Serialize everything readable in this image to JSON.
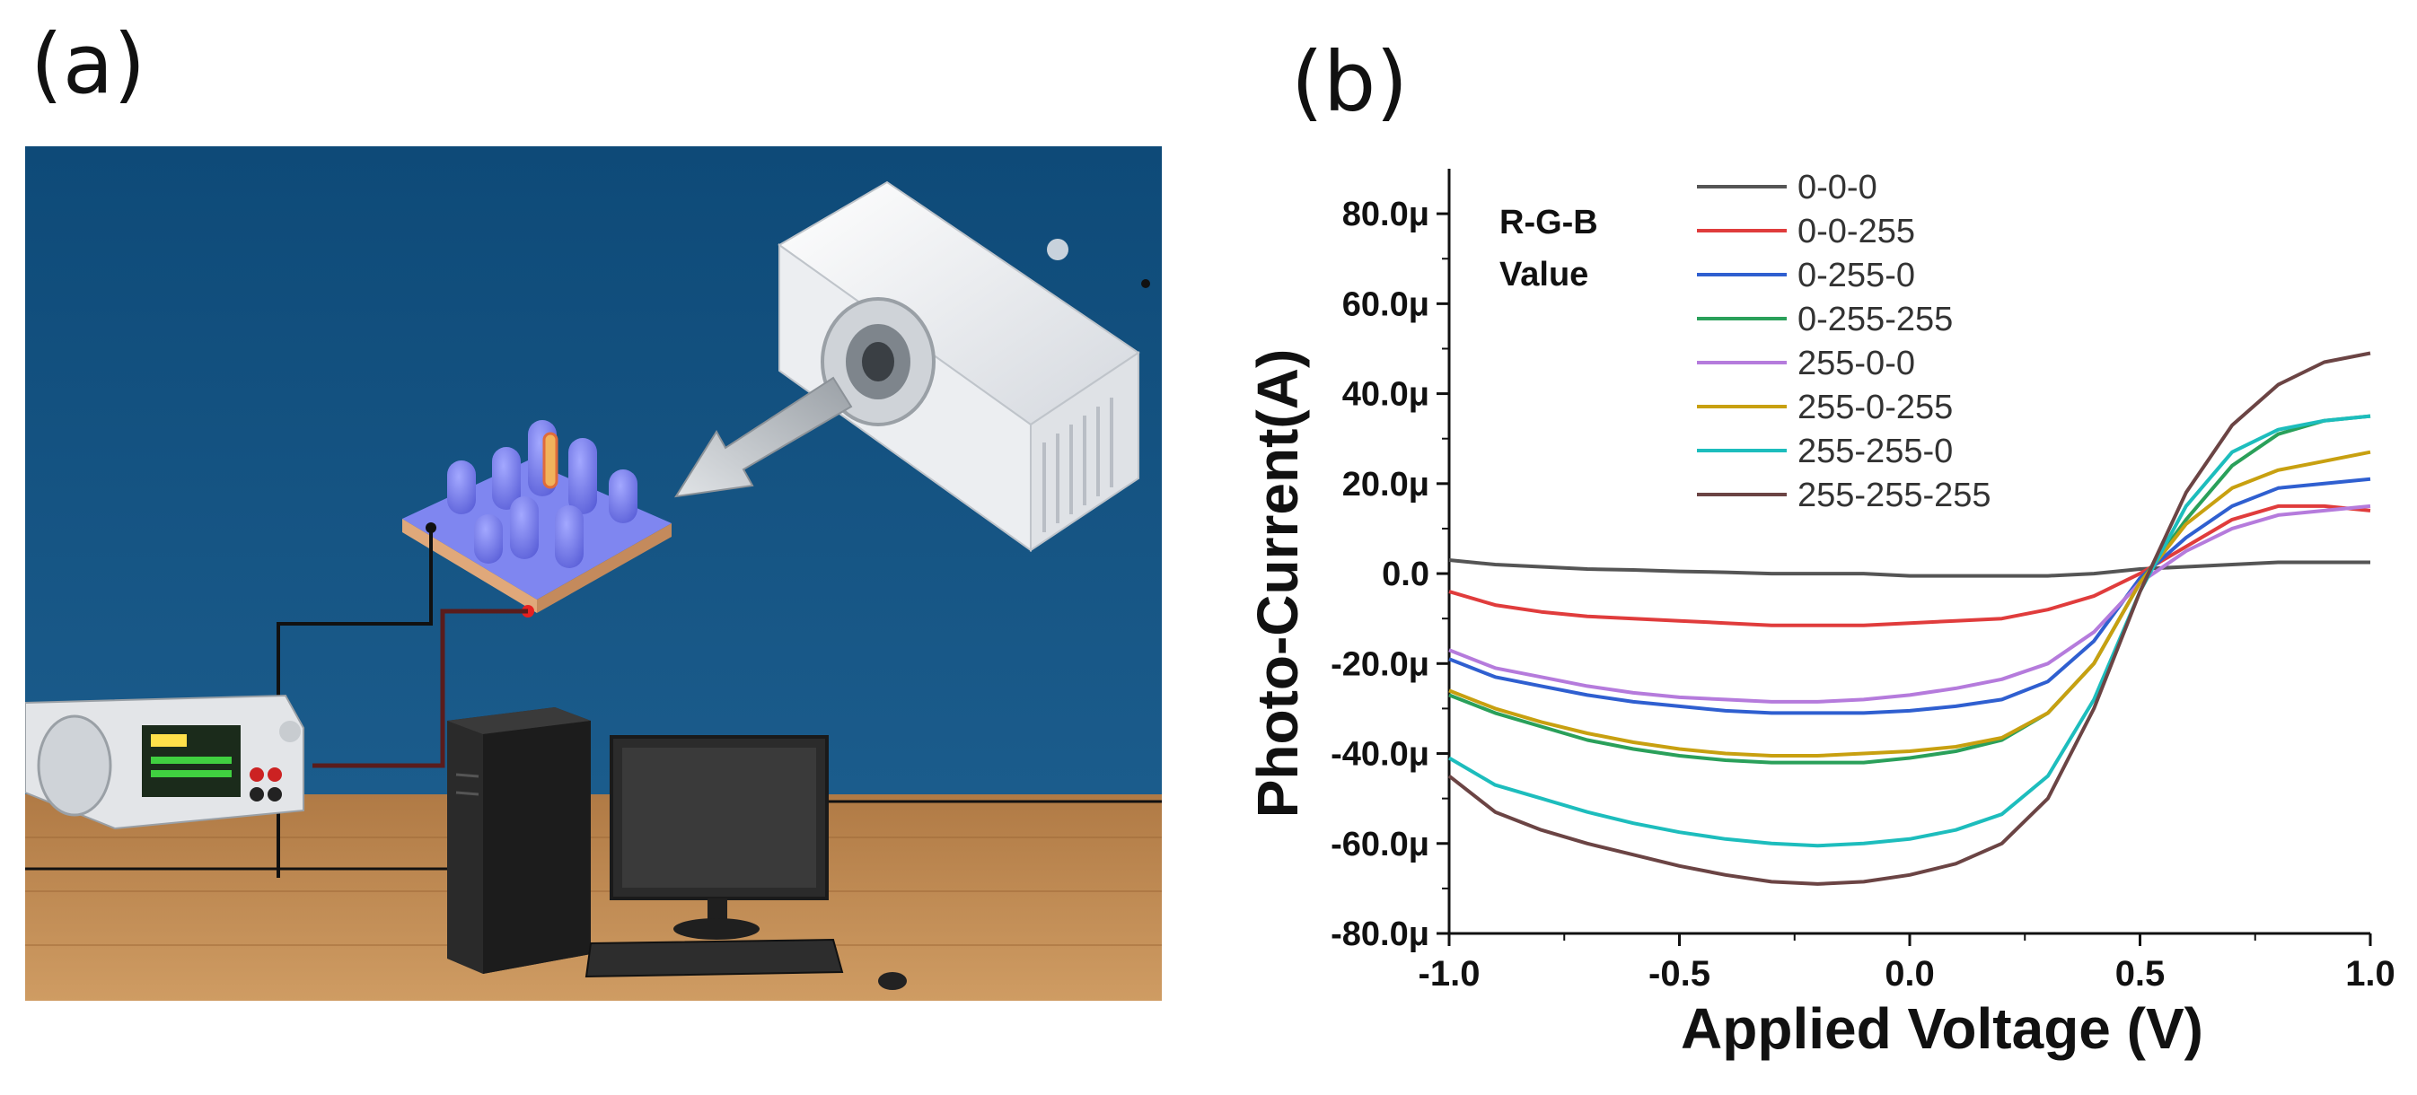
{
  "panels": {
    "a": "(a)",
    "b": "(b)"
  },
  "chart_data": {
    "type": "line",
    "title": "",
    "xlabel": "Applied Voltage (V)",
    "ylabel": "Photo-Current(A)",
    "xlim": [
      -1.0,
      1.0
    ],
    "ylim": [
      -80,
      90
    ],
    "x_unit_scale": "μA values",
    "xticks": [
      -1.0,
      -0.5,
      0.0,
      0.5,
      1.0
    ],
    "xtick_labels": [
      "-1.0",
      "-0.5",
      "0.0",
      "0.5",
      "1.0"
    ],
    "yticks": [
      -80,
      -60,
      -40,
      -20,
      0,
      20,
      40,
      60,
      80
    ],
    "ytick_labels": [
      "-80.0μ",
      "-60.0μ",
      "-40.0μ",
      "-20.0μ",
      "0.0",
      "20.0μ",
      "40.0μ",
      "60.0μ",
      "80.0μ"
    ],
    "legend_title": [
      "R-G-B",
      "Value"
    ],
    "legend_position": "top-left",
    "grid": false,
    "x": [
      -1.0,
      -0.9,
      -0.8,
      -0.7,
      -0.6,
      -0.5,
      -0.4,
      -0.3,
      -0.2,
      -0.1,
      0.0,
      0.1,
      0.2,
      0.3,
      0.4,
      0.5,
      0.6,
      0.7,
      0.8,
      0.9,
      1.0
    ],
    "series": [
      {
        "name": "0-0-0",
        "color": "#555555",
        "values": [
          3,
          2,
          1.5,
          1,
          0.8,
          0.5,
          0.3,
          0,
          0,
          0,
          -0.5,
          -0.5,
          -0.5,
          -0.5,
          0,
          1,
          1.5,
          2,
          2.5,
          2.5,
          2.5
        ]
      },
      {
        "name": "0-0-255",
        "color": "#e03c3c",
        "values": [
          -4,
          -7,
          -8.5,
          -9.5,
          -10,
          -10.5,
          -11,
          -11.5,
          -11.5,
          -11.5,
          -11,
          -10.5,
          -10,
          -8,
          -5,
          0,
          6,
          12,
          15,
          15,
          14
        ]
      },
      {
        "name": "0-255-0",
        "color": "#2f5fd0",
        "values": [
          -19,
          -23,
          -25,
          -27,
          -28.5,
          -29.5,
          -30.5,
          -31,
          -31,
          -31,
          -30.5,
          -29.5,
          -28,
          -24,
          -15,
          -1,
          8,
          15,
          19,
          20,
          21
        ]
      },
      {
        "name": "0-255-255",
        "color": "#2aa05a",
        "values": [
          -27,
          -31,
          -34,
          -37,
          -39,
          -40.5,
          -41.5,
          -42,
          -42,
          -42,
          -41,
          -39.5,
          -37,
          -31,
          -20,
          -2,
          12,
          24,
          31,
          34,
          35
        ]
      },
      {
        "name": "255-0-0",
        "color": "#b57bdc",
        "values": [
          -17,
          -21,
          -23,
          -25,
          -26.5,
          -27.5,
          -28,
          -28.5,
          -28.5,
          -28,
          -27,
          -25.5,
          -23.5,
          -20,
          -13,
          -2,
          5,
          10,
          13,
          14,
          15
        ]
      },
      {
        "name": "255-0-255",
        "color": "#c8a010",
        "values": [
          -26,
          -30,
          -33,
          -35.5,
          -37.5,
          -39,
          -40,
          -40.5,
          -40.5,
          -40,
          -39.5,
          -38.5,
          -36.5,
          -31,
          -20,
          -2,
          11,
          19,
          23,
          25,
          27
        ]
      },
      {
        "name": "255-255-0",
        "color": "#1dbdbd",
        "values": [
          -41,
          -47,
          -50,
          -53,
          -55.5,
          -57.5,
          -59,
          -60,
          -60.5,
          -60,
          -59,
          -57,
          -53.5,
          -45,
          -28,
          -4,
          15,
          27,
          32,
          34,
          35
        ]
      },
      {
        "name": "255-255-255",
        "color": "#6b4444",
        "values": [
          -45,
          -53,
          -57,
          -60,
          -62.5,
          -65,
          -67,
          -68.5,
          -69,
          -68.5,
          -67,
          -64.5,
          -60,
          -50,
          -30,
          -4,
          18,
          33,
          42,
          47,
          49
        ]
      }
    ]
  }
}
